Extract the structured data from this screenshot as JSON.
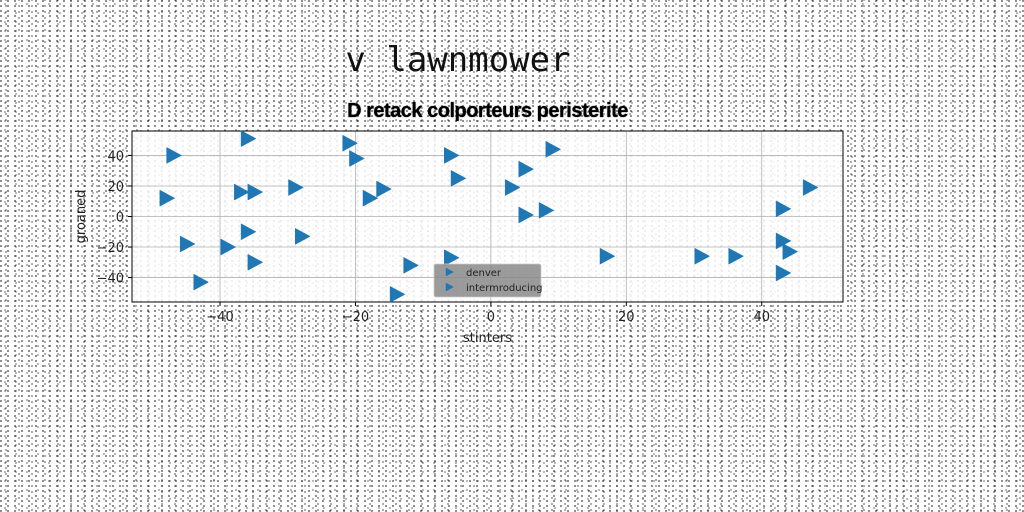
{
  "suptitle": "v lawnmower",
  "chart_data": {
    "type": "scatter",
    "title": "D retack colporteurs peristerite",
    "xlabel": "stinters",
    "ylabel": "groaned",
    "xlim": [
      -53,
      52
    ],
    "ylim": [
      -56,
      56
    ],
    "xticks": [
      -40,
      -20,
      0,
      20,
      40
    ],
    "yticks": [
      -40,
      -20,
      0,
      20,
      40
    ],
    "grid": true,
    "legend_position": "lower center",
    "series": [
      {
        "name": "denver",
        "color": "#1f77b4",
        "marker": "triangle-right",
        "points": [
          [
            -47,
            40
          ],
          [
            -36,
            51
          ],
          [
            -21,
            48
          ],
          [
            -20,
            38
          ],
          [
            -6,
            40
          ],
          [
            9,
            44
          ],
          [
            5,
            31
          ],
          [
            -5,
            25
          ],
          [
            3,
            19
          ],
          [
            -43,
            -43
          ],
          [
            -16,
            18
          ],
          [
            -29,
            19
          ],
          [
            -35,
            16
          ],
          [
            -37,
            16
          ],
          [
            -48,
            12
          ],
          [
            -18,
            12
          ],
          [
            5,
            1
          ],
          [
            8,
            4
          ],
          [
            43,
            5
          ],
          [
            47,
            19
          ],
          [
            -36,
            -10
          ],
          [
            -28,
            -13
          ],
          [
            -45,
            -18
          ],
          [
            -39,
            -20
          ],
          [
            -35,
            -30
          ],
          [
            -12,
            -32
          ],
          [
            -6,
            -27
          ],
          [
            17,
            -26
          ],
          [
            31,
            -26
          ],
          [
            36,
            -26
          ],
          [
            43,
            -16
          ],
          [
            44,
            -23
          ],
          [
            43,
            -37
          ],
          [
            -14,
            -51
          ]
        ]
      },
      {
        "name": "intermroducing",
        "color": "#1f77b4",
        "marker": "triangle-right",
        "points": []
      }
    ]
  }
}
